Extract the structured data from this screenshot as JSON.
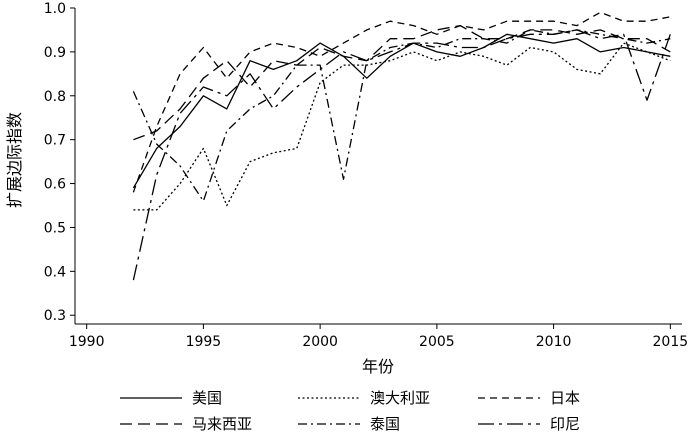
{
  "chart_data": {
    "type": "line",
    "title": "",
    "xlabel": "年份",
    "ylabel": "扩展边际指数",
    "xlim": [
      1989.5,
      2015.5
    ],
    "ylim": [
      0.28,
      1.0
    ],
    "xticks": [
      1990,
      1995,
      2000,
      2005,
      2010,
      2015
    ],
    "yticks": [
      0.3,
      0.4,
      0.5,
      0.6,
      0.7,
      0.8,
      0.9,
      1.0
    ],
    "ytick_labels": [
      "0.3",
      "0.4",
      "0.5",
      "0.6",
      "0.7",
      "0.8",
      "0.9",
      "1.0"
    ],
    "legend_position": "bottom",
    "x": [
      1992,
      1993,
      1994,
      1995,
      1996,
      1997,
      1998,
      1999,
      2000,
      2001,
      2002,
      2003,
      2004,
      2005,
      2006,
      2007,
      2008,
      2009,
      2010,
      2011,
      2012,
      2013,
      2014,
      2015
    ],
    "series": [
      {
        "name": "美国",
        "style": "solid",
        "values": [
          0.59,
          0.68,
          0.73,
          0.8,
          0.77,
          0.88,
          0.86,
          0.88,
          0.92,
          0.89,
          0.84,
          0.89,
          0.92,
          0.9,
          0.89,
          0.91,
          0.94,
          0.93,
          0.92,
          0.93,
          0.9,
          0.91,
          0.9,
          0.89
        ]
      },
      {
        "name": "澳大利亚",
        "style": "dotted",
        "values": [
          0.54,
          0.54,
          0.6,
          0.68,
          0.55,
          0.65,
          0.67,
          0.68,
          0.83,
          0.87,
          0.87,
          0.88,
          0.9,
          0.88,
          0.9,
          0.89,
          0.87,
          0.91,
          0.9,
          0.86,
          0.85,
          0.92,
          0.9,
          0.88
        ]
      },
      {
        "name": "日本",
        "style": "dashed-short",
        "values": [
          0.58,
          0.73,
          0.85,
          0.91,
          0.84,
          0.9,
          0.92,
          0.91,
          0.89,
          0.92,
          0.95,
          0.97,
          0.96,
          0.94,
          0.96,
          0.95,
          0.97,
          0.97,
          0.97,
          0.96,
          0.99,
          0.97,
          0.97,
          0.98
        ]
      },
      {
        "name": "马来西亚",
        "style": "dashed-long",
        "values": [
          0.7,
          0.72,
          0.77,
          0.84,
          0.88,
          0.82,
          0.88,
          0.87,
          0.91,
          0.89,
          0.88,
          0.93,
          0.93,
          0.95,
          0.96,
          0.93,
          0.93,
          0.95,
          0.95,
          0.94,
          0.95,
          0.93,
          0.93,
          0.9
        ]
      },
      {
        "name": "泰国",
        "style": "dash-dot",
        "values": [
          0.81,
          0.69,
          0.64,
          0.56,
          0.72,
          0.77,
          0.8,
          0.87,
          0.87,
          0.61,
          0.88,
          0.91,
          0.92,
          0.91,
          0.93,
          0.93,
          0.92,
          0.95,
          0.94,
          0.95,
          0.94,
          0.93,
          0.92,
          0.93
        ]
      },
      {
        "name": "印尼",
        "style": "dash-long-dot",
        "values": [
          0.38,
          0.62,
          0.76,
          0.82,
          0.8,
          0.85,
          0.77,
          0.82,
          0.86,
          0.9,
          0.88,
          0.9,
          0.92,
          0.92,
          0.91,
          0.91,
          0.93,
          0.94,
          0.94,
          0.95,
          0.93,
          0.94,
          0.79,
          0.94
        ]
      }
    ]
  }
}
